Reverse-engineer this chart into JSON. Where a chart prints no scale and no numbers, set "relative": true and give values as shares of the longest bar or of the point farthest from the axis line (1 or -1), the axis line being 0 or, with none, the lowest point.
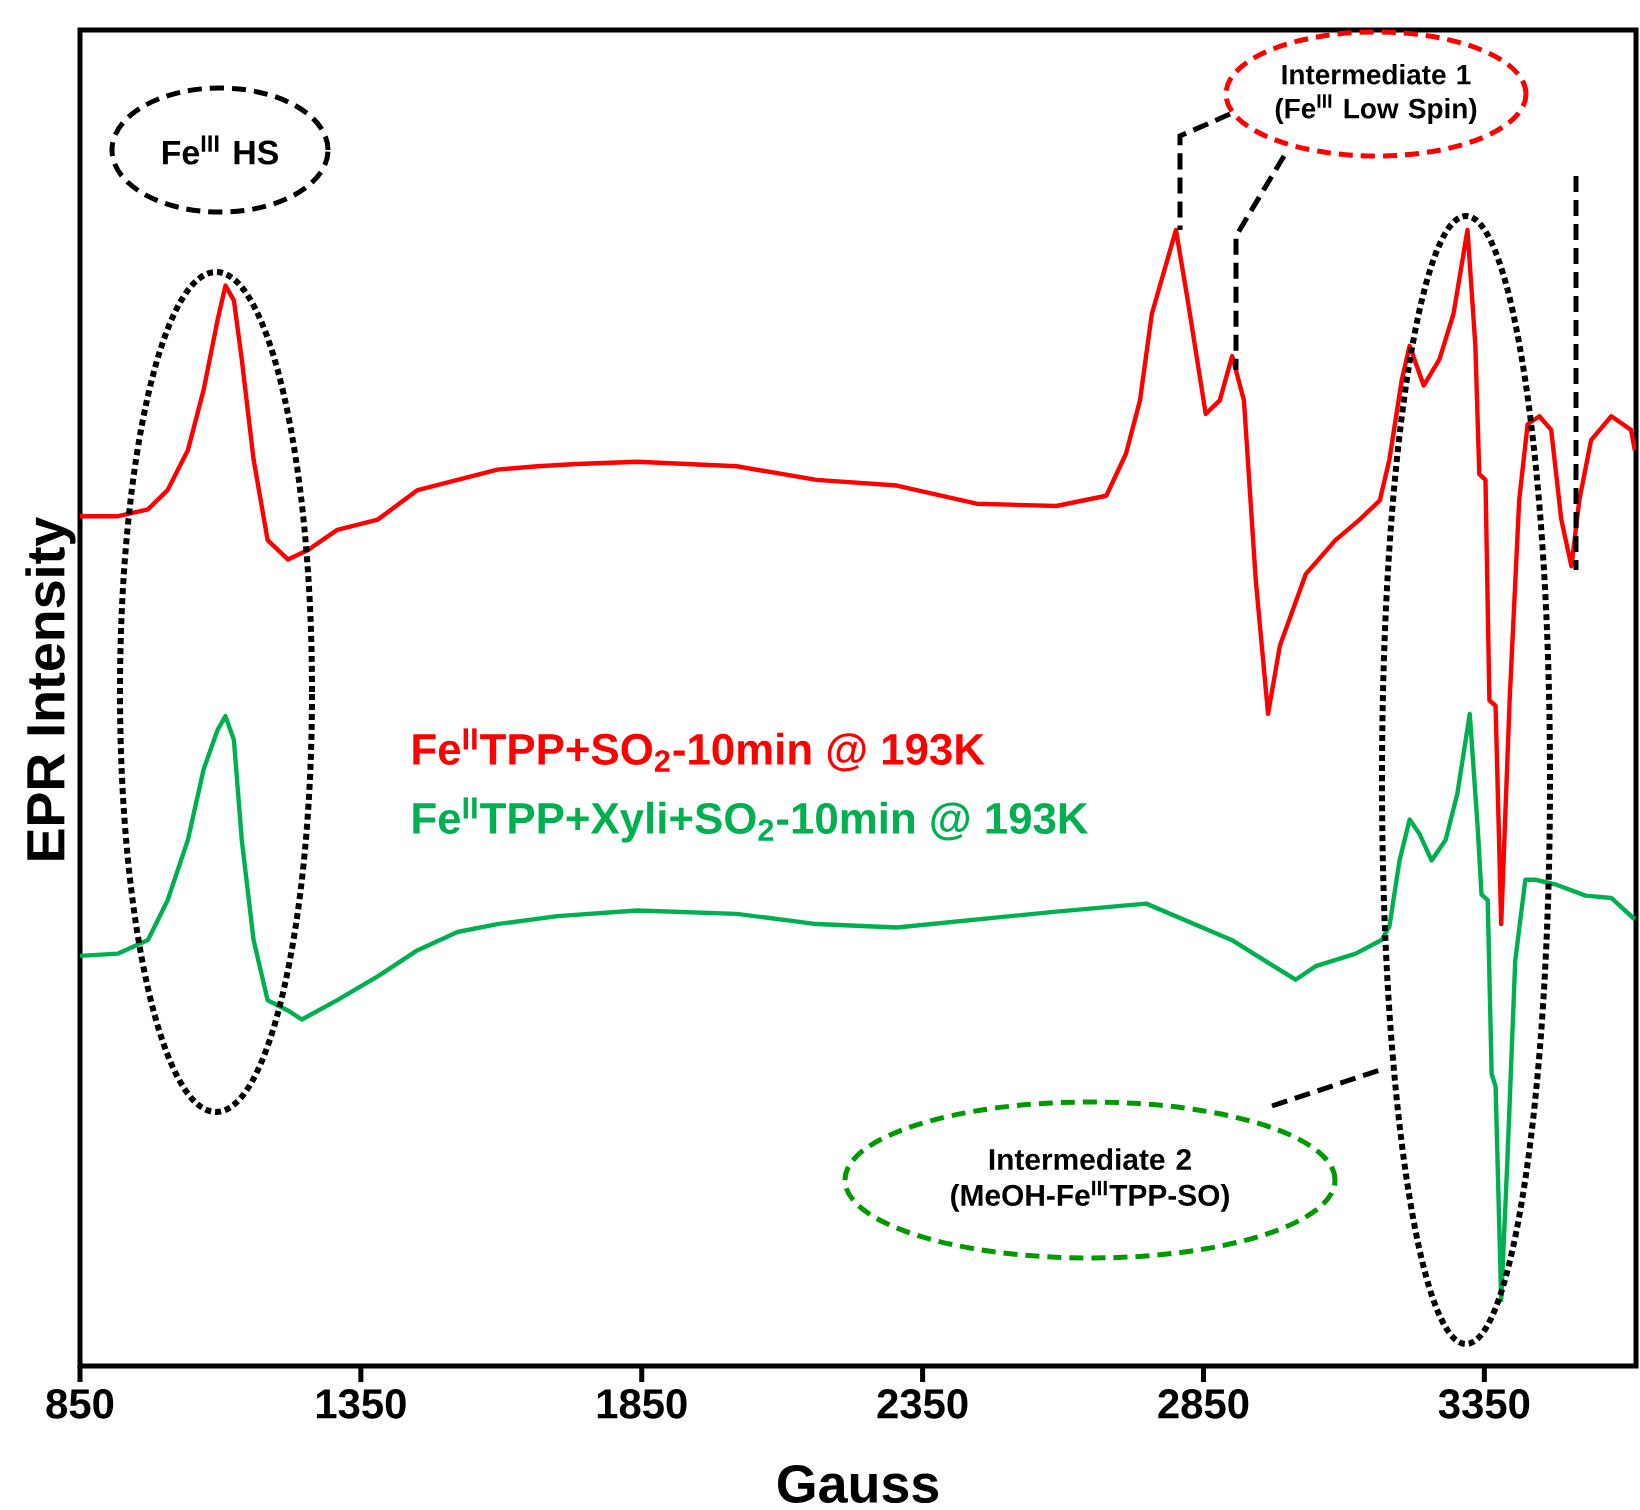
{
  "chart_data": {
    "type": "line",
    "xlabel": "Gauss",
    "ylabel": "EPR Intensity",
    "xlim": [
      850,
      3620
    ],
    "xticks": [
      850,
      1350,
      1850,
      2350,
      2850,
      3350
    ],
    "relative": true,
    "legend": "center",
    "series": [
      {
        "name": "Fe$^{II}$TPP+SO$_{2}$-10min @ 193K",
        "color": "#ff0000",
        "x": [
          850,
          918,
          971,
          1006,
          1042,
          1070,
          1095,
          1109,
          1124,
          1138,
          1159,
          1184,
          1220,
          1255,
          1308,
          1380,
          1451,
          1522,
          1593,
          1664,
          1735,
          1842,
          2019,
          2161,
          2304,
          2446,
          2588,
          2677,
          2712,
          2737,
          2758,
          2801,
          2822,
          2854,
          2879,
          2901,
          2922,
          2943,
          2965,
          2986,
          3032,
          3085,
          3128,
          3164,
          3181,
          3203,
          3217,
          3242,
          3270,
          3295,
          3320,
          3334,
          3341,
          3352,
          3359,
          3370,
          3380,
          3395,
          3412,
          3427,
          3448,
          3469,
          3487,
          3505,
          3519,
          3540,
          3576,
          3611,
          3618
        ],
        "values": [
          0.748,
          0.748,
          0.754,
          0.771,
          0.806,
          0.859,
          0.921,
          0.951,
          0.938,
          0.886,
          0.798,
          0.727,
          0.71,
          0.718,
          0.736,
          0.745,
          0.771,
          0.78,
          0.789,
          0.792,
          0.794,
          0.796,
          0.792,
          0.78,
          0.775,
          0.759,
          0.757,
          0.766,
          0.803,
          0.85,
          0.926,
          1.0,
          0.938,
          0.838,
          0.85,
          0.889,
          0.85,
          0.692,
          0.574,
          0.634,
          0.697,
          0.727,
          0.745,
          0.762,
          0.798,
          0.868,
          0.898,
          0.863,
          0.886,
          0.926,
          1.0,
          0.898,
          0.785,
          0.78,
          0.586,
          0.581,
          0.389,
          0.586,
          0.762,
          0.829,
          0.836,
          0.824,
          0.745,
          0.704,
          0.762,
          0.815,
          0.836,
          0.824,
          0.806
        ]
      },
      {
        "name": "Fe$^{II}$TPP+Xyli+SO$_{2}$-10min @ 193K",
        "color": "#00b050",
        "x": [
          850,
          918,
          971,
          1006,
          1042,
          1070,
          1095,
          1109,
          1124,
          1138,
          1159,
          1184,
          1220,
          1245,
          1308,
          1380,
          1451,
          1522,
          1593,
          1700,
          1842,
          2019,
          2161,
          2304,
          2446,
          2588,
          2748,
          2900,
          3014,
          3050,
          3121,
          3167,
          3181,
          3199,
          3217,
          3235,
          3256,
          3281,
          3302,
          3324,
          3338,
          3345,
          3356,
          3363,
          3370,
          3380,
          3391,
          3405,
          3423,
          3441,
          3476,
          3530,
          3576,
          3618
        ],
        "values": [
          0.361,
          0.363,
          0.375,
          0.41,
          0.463,
          0.525,
          0.56,
          0.572,
          0.551,
          0.463,
          0.375,
          0.322,
          0.313,
          0.305,
          0.322,
          0.343,
          0.366,
          0.382,
          0.389,
          0.396,
          0.401,
          0.398,
          0.389,
          0.386,
          0.393,
          0.4,
          0.407,
          0.375,
          0.34,
          0.352,
          0.363,
          0.375,
          0.387,
          0.445,
          0.481,
          0.468,
          0.445,
          0.463,
          0.504,
          0.574,
          0.475,
          0.415,
          0.41,
          0.257,
          0.246,
          0.058,
          0.181,
          0.357,
          0.428,
          0.428,
          0.424,
          0.414,
          0.412,
          0.393
        ]
      }
    ],
    "annotations": [
      "Fe$^{III}$ HS",
      "Intermediate 1 (Fe$^{III}$ Low Spin)",
      "Intermediate 2 (MeOH-Fe$^{III}$TPP-SO)"
    ]
  }
}
